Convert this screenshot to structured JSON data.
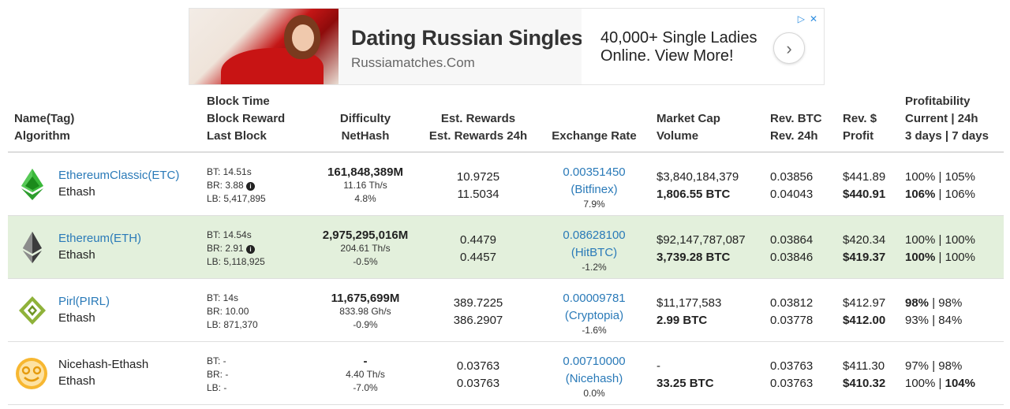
{
  "ad": {
    "title": "Dating Russian Singles",
    "url": "Russiamatches.Com",
    "description_line1": "40,000+ Single Ladies",
    "description_line2": "Online. View More!",
    "next_icon": "chevron-right-icon",
    "choices_icon": "adchoices-icon",
    "close_icon": "close-icon"
  },
  "headers": {
    "name1": "Name(Tag)",
    "name2": "Algorithm",
    "block1": "Block Time",
    "block2": "Block Reward",
    "block3": "Last Block",
    "diff1": "Difficulty",
    "diff2": "NetHash",
    "rew1": "Est. Rewards",
    "rew2": "Est. Rewards 24h",
    "rate": "Exchange Rate",
    "mcap1": "Market Cap",
    "mcap2": "Volume",
    "rev1": "Rev. BTC",
    "rev2": "Rev. 24h",
    "prof1": "Rev. $",
    "prof2": "Profit",
    "pr1": "Profitability",
    "pr2": "Current | 24h",
    "pr3": "3 days | 7 days"
  },
  "rows": [
    {
      "name": "EthereumClassic(ETC)",
      "algo": "Ethash",
      "icon": "ethereum-classic-icon",
      "bt": "BT: 14.51s",
      "br": "BR: 3.88",
      "lb": "LB: 5,417,895",
      "diff": "161,848,389M",
      "hash": "11.16 Th/s",
      "diff_pct": "4.8%",
      "rew": "10.9725",
      "rew24": "11.5034",
      "rate": "0.00351450",
      "exchange": "(Bitfinex)",
      "rate_pct": "7.9%",
      "mcap": "$3,840,184,379",
      "vol": "1,806.55 BTC",
      "rev": "0.03856",
      "rev24": "0.04043",
      "usd": "$441.89",
      "profit": "$440.91",
      "p_cur": "100%",
      "p_24h": "105%",
      "p_3d": "106%",
      "p_7d": "106%"
    },
    {
      "name": "Ethereum(ETH)",
      "algo": "Ethash",
      "icon": "ethereum-icon",
      "bt": "BT: 14.54s",
      "br": "BR: 2.91",
      "lb": "LB: 5,118,925",
      "diff": "2,975,295,016M",
      "hash": "204.61 Th/s",
      "diff_pct": "-0.5%",
      "rew": "0.4479",
      "rew24": "0.4457",
      "rate": "0.08628100",
      "exchange": "(HitBTC)",
      "rate_pct": "-1.2%",
      "mcap": "$92,147,787,087",
      "vol": "3,739.28 BTC",
      "rev": "0.03864",
      "rev24": "0.03846",
      "usd": "$420.34",
      "profit": "$419.37",
      "p_cur": "100%",
      "p_24h": "100%",
      "p_3d": "100%",
      "p_7d": "100%"
    },
    {
      "name": "Pirl(PIRL)",
      "algo": "Ethash",
      "icon": "pirl-icon",
      "bt": "BT: 14s",
      "br": "BR: 10.00",
      "lb": "LB: 871,370",
      "diff": "11,675,699M",
      "hash": "833.98 Gh/s",
      "diff_pct": "-0.9%",
      "rew": "389.7225",
      "rew24": "386.2907",
      "rate": "0.00009781",
      "exchange": "(Cryptopia)",
      "rate_pct": "-1.6%",
      "mcap": "$11,177,583",
      "vol": "2.99 BTC",
      "rev": "0.03812",
      "rev24": "0.03778",
      "usd": "$412.97",
      "profit": "$412.00",
      "p_cur": "98%",
      "p_24h": "98%",
      "p_3d": "93%",
      "p_7d": "84%"
    },
    {
      "name": "Nicehash-Ethash",
      "algo": "Ethash",
      "icon": "nicehash-icon",
      "bt": "BT: -",
      "br": "BR: -",
      "lb": "LB: -",
      "diff": "-",
      "hash": "4.40 Th/s",
      "diff_pct": "-7.0%",
      "rew": "0.03763",
      "rew24": "0.03763",
      "rate": "0.00710000",
      "exchange": "(Nicehash)",
      "rate_pct": "0.0%",
      "mcap": "-",
      "vol": "33.25 BTC",
      "rev": "0.03763",
      "rev24": "0.03763",
      "usd": "$411.30",
      "profit": "$410.32",
      "p_cur": "97%",
      "p_24h": "98%",
      "p_3d": "100%",
      "p_7d": "104%"
    }
  ],
  "colors": {
    "link": "#2a7ab8",
    "highlight_row": "#e3f0dc"
  }
}
